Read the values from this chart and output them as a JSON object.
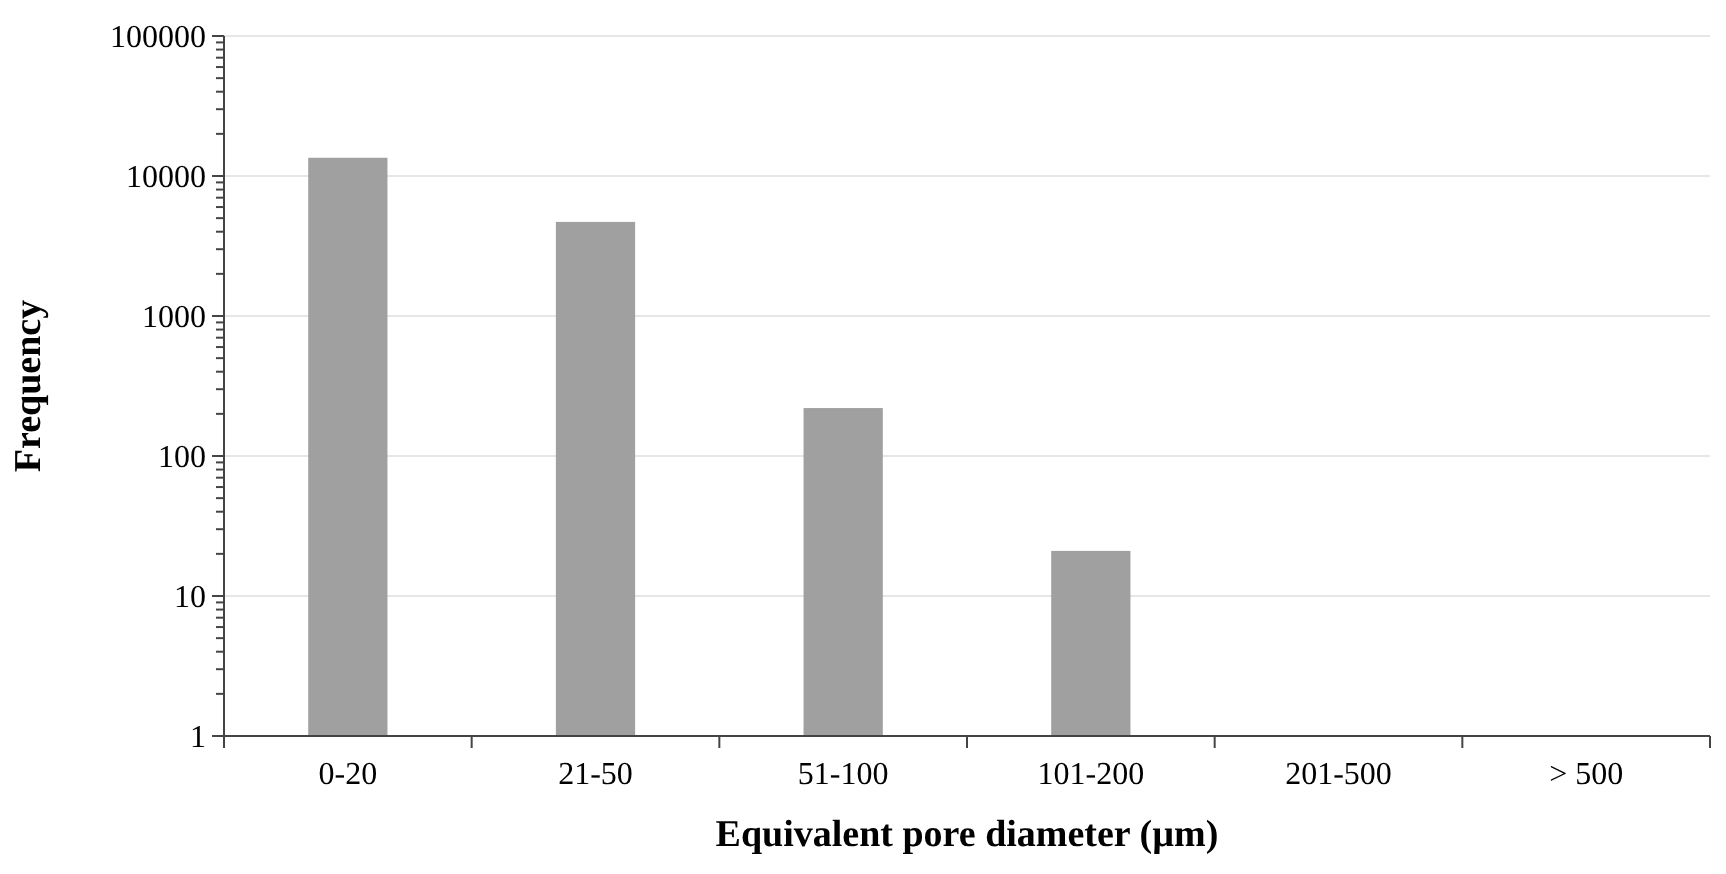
{
  "chart_data": {
    "type": "bar",
    "xlabel": "Equivalent pore diameter (µm)",
    "ylabel": "Frequency",
    "categories": [
      "0-20",
      "21-50",
      "51-100",
      "101-200",
      "201-500",
      "> 500"
    ],
    "values": [
      13500,
      4700,
      220,
      21,
      null,
      null
    ],
    "color": "#a0a0a0",
    "log": true,
    "ylim": [
      1,
      100000
    ],
    "yticks": [
      1,
      {
        "value": 2,
        "label": null
      },
      {
        "value": 3,
        "label": null
      },
      {
        "value": 4,
        "label": null
      },
      {
        "value": 5,
        "label": null
      },
      {
        "value": 6,
        "label": null
      },
      {
        "value": 7,
        "label": null
      },
      {
        "value": 8,
        "label": null
      },
      {
        "value": 9,
        "label": null
      },
      10,
      {
        "value": 20,
        "label": null
      },
      {
        "value": 30,
        "label": null
      },
      {
        "value": 40,
        "label": null
      },
      {
        "value": 50,
        "label": null
      },
      {
        "value": 60,
        "label": null
      },
      {
        "value": 70,
        "label": null
      },
      {
        "value": 80,
        "label": null
      },
      {
        "value": 90,
        "label": null
      },
      100,
      {
        "value": 200,
        "label": null
      },
      {
        "value": 300,
        "label": null
      },
      {
        "value": 400,
        "label": null
      },
      {
        "value": 500,
        "label": null
      },
      {
        "value": 600,
        "label": null
      },
      {
        "value": 700,
        "label": null
      },
      {
        "value": 800,
        "label": null
      },
      {
        "value": 900,
        "label": null
      },
      1000,
      {
        "value": 2000,
        "label": null
      },
      {
        "value": 3000,
        "label": null
      },
      {
        "value": 4000,
        "label": null
      },
      {
        "value": 5000,
        "label": null
      },
      {
        "value": 6000,
        "label": null
      },
      {
        "value": 7000,
        "label": null
      },
      {
        "value": 8000,
        "label": null
      },
      {
        "value": 9000,
        "label": null
      },
      10000,
      {
        "value": 20000,
        "label": null
      },
      {
        "value": 30000,
        "label": null
      },
      {
        "value": 40000,
        "label": null
      },
      {
        "value": 50000,
        "label": null
      },
      {
        "value": 60000,
        "label": null
      },
      {
        "value": 70000,
        "label": null
      },
      {
        "value": 80000,
        "label": null
      },
      {
        "value": 90000,
        "label": null
      },
      100000
    ],
    "grid": "y"
  }
}
